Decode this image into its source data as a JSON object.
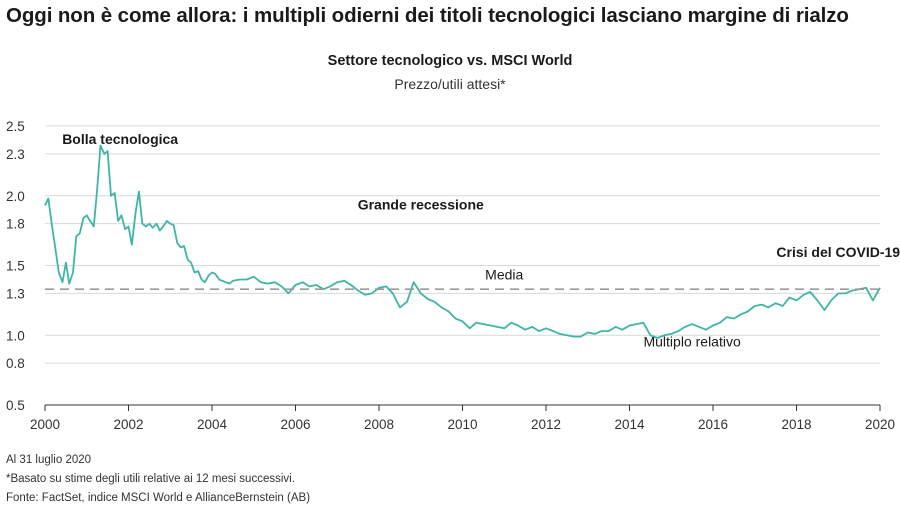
{
  "header": {
    "title": "Oggi non è come allora: i multipli odierni dei titoli tecnologici lasciano margine di rialzo"
  },
  "chart_data": {
    "type": "line",
    "title": "Settore tecnologico vs. MSCI World",
    "subtitle": "Prezzo/utili attesi*",
    "xlabel": "",
    "ylabel": "",
    "xlim": [
      2000,
      2020
    ],
    "ylim": [
      0.5,
      2.5
    ],
    "x_ticks": [
      2000,
      2002,
      2004,
      2006,
      2008,
      2010,
      2012,
      2014,
      2016,
      2018,
      2020
    ],
    "y_ticks": [
      0.5,
      0.8,
      1.0,
      1.3,
      1.5,
      1.8,
      2.0,
      2.3,
      2.5
    ],
    "y_tick_labels": [
      "0.5",
      "0.8",
      "1.0",
      "1.3",
      "1.5",
      "1.8",
      "2.0",
      "2.3",
      "2.5"
    ],
    "grid": true,
    "series": [
      {
        "name": "Multiplo relativo",
        "color": "#3fb5a5",
        "x": [
          2000.0,
          2000.08,
          2000.17,
          2000.25,
          2000.33,
          2000.42,
          2000.5,
          2000.58,
          2000.67,
          2000.75,
          2000.83,
          2000.92,
          2001.0,
          2001.08,
          2001.17,
          2001.25,
          2001.33,
          2001.42,
          2001.5,
          2001.58,
          2001.67,
          2001.75,
          2001.83,
          2001.92,
          2002.0,
          2002.08,
          2002.17,
          2002.25,
          2002.33,
          2002.42,
          2002.5,
          2002.58,
          2002.67,
          2002.75,
          2002.83,
          2002.92,
          2003.0,
          2003.08,
          2003.17,
          2003.25,
          2003.33,
          2003.42,
          2003.5,
          2003.58,
          2003.67,
          2003.75,
          2003.83,
          2003.92,
          2004.0,
          2004.08,
          2004.17,
          2004.25,
          2004.33,
          2004.42,
          2004.5,
          2004.67,
          2004.83,
          2005.0,
          2005.17,
          2005.33,
          2005.5,
          2005.67,
          2005.83,
          2006.0,
          2006.17,
          2006.33,
          2006.5,
          2006.67,
          2006.83,
          2007.0,
          2007.17,
          2007.33,
          2007.5,
          2007.67,
          2007.83,
          2008.0,
          2008.17,
          2008.33,
          2008.5,
          2008.67,
          2008.83,
          2009.0,
          2009.17,
          2009.33,
          2009.5,
          2009.67,
          2009.83,
          2010.0,
          2010.17,
          2010.33,
          2010.5,
          2010.67,
          2010.83,
          2011.0,
          2011.17,
          2011.33,
          2011.5,
          2011.67,
          2011.83,
          2012.0,
          2012.17,
          2012.33,
          2012.5,
          2012.67,
          2012.83,
          2013.0,
          2013.17,
          2013.33,
          2013.5,
          2013.67,
          2013.83,
          2014.0,
          2014.17,
          2014.33,
          2014.5,
          2014.67,
          2014.83,
          2015.0,
          2015.17,
          2015.33,
          2015.5,
          2015.67,
          2015.83,
          2016.0,
          2016.17,
          2016.33,
          2016.5,
          2016.67,
          2016.83,
          2017.0,
          2017.17,
          2017.33,
          2017.5,
          2017.67,
          2017.83,
          2018.0,
          2018.17,
          2018.33,
          2018.5,
          2018.67,
          2018.83,
          2019.0,
          2019.17,
          2019.33,
          2019.5,
          2019.67,
          2019.83,
          2020.0
        ],
        "y": [
          1.93,
          1.98,
          1.78,
          1.62,
          1.45,
          1.38,
          1.52,
          1.37,
          1.45,
          1.71,
          1.73,
          1.84,
          1.86,
          1.82,
          1.78,
          2.05,
          2.36,
          2.3,
          2.32,
          2.0,
          2.02,
          1.82,
          1.86,
          1.76,
          1.78,
          1.65,
          1.88,
          2.03,
          1.8,
          1.78,
          1.8,
          1.77,
          1.8,
          1.75,
          1.78,
          1.82,
          1.8,
          1.79,
          1.66,
          1.63,
          1.64,
          1.54,
          1.52,
          1.45,
          1.46,
          1.4,
          1.38,
          1.43,
          1.45,
          1.44,
          1.4,
          1.39,
          1.38,
          1.37,
          1.39,
          1.4,
          1.4,
          1.42,
          1.38,
          1.37,
          1.38,
          1.35,
          1.3,
          1.36,
          1.38,
          1.35,
          1.36,
          1.33,
          1.35,
          1.38,
          1.39,
          1.36,
          1.32,
          1.29,
          1.3,
          1.34,
          1.35,
          1.3,
          1.2,
          1.24,
          1.38,
          1.3,
          1.26,
          1.24,
          1.2,
          1.17,
          1.12,
          1.1,
          1.05,
          1.09,
          1.08,
          1.07,
          1.06,
          1.05,
          1.09,
          1.07,
          1.04,
          1.06,
          1.03,
          1.05,
          1.03,
          1.01,
          1.0,
          0.99,
          0.99,
          1.02,
          1.01,
          1.03,
          1.03,
          1.06,
          1.04,
          1.07,
          1.08,
          1.09,
          1.0,
          0.98,
          1.0,
          1.01,
          1.03,
          1.06,
          1.08,
          1.06,
          1.04,
          1.07,
          1.09,
          1.13,
          1.12,
          1.15,
          1.17,
          1.21,
          1.22,
          1.2,
          1.23,
          1.21,
          1.27,
          1.25,
          1.29,
          1.31,
          1.25,
          1.18,
          1.25,
          1.3,
          1.3,
          1.32,
          1.33,
          1.34,
          1.25,
          1.34
        ]
      },
      {
        "name": "Media",
        "color": "#9a9a9a",
        "style": "dashed",
        "x": [
          2000,
          2020
        ],
        "y": [
          1.33,
          1.33
        ]
      }
    ],
    "annotations": [
      {
        "text": "Bolla tecnologica",
        "x": 2001.8,
        "y": 2.37,
        "bold": true
      },
      {
        "text": "Grande recessione",
        "x": 2009.0,
        "y": 1.9,
        "bold": true
      },
      {
        "text": "Crisi del COVID-19",
        "x": 2019.0,
        "y": 1.56,
        "bold": true
      },
      {
        "text": "Media",
        "x": 2011.0,
        "y": 1.4,
        "bold": false
      },
      {
        "text": "Multiplo relativo",
        "x": 2015.5,
        "y": 0.92,
        "bold": false
      }
    ]
  },
  "notes": {
    "date": "Al 31 luglio 2020",
    "footnote": "*Basato su stime degli utili relative ai 12 mesi successivi.",
    "source": "Fonte: FactSet, indice MSCI World e AllianceBernstein (AB)"
  }
}
